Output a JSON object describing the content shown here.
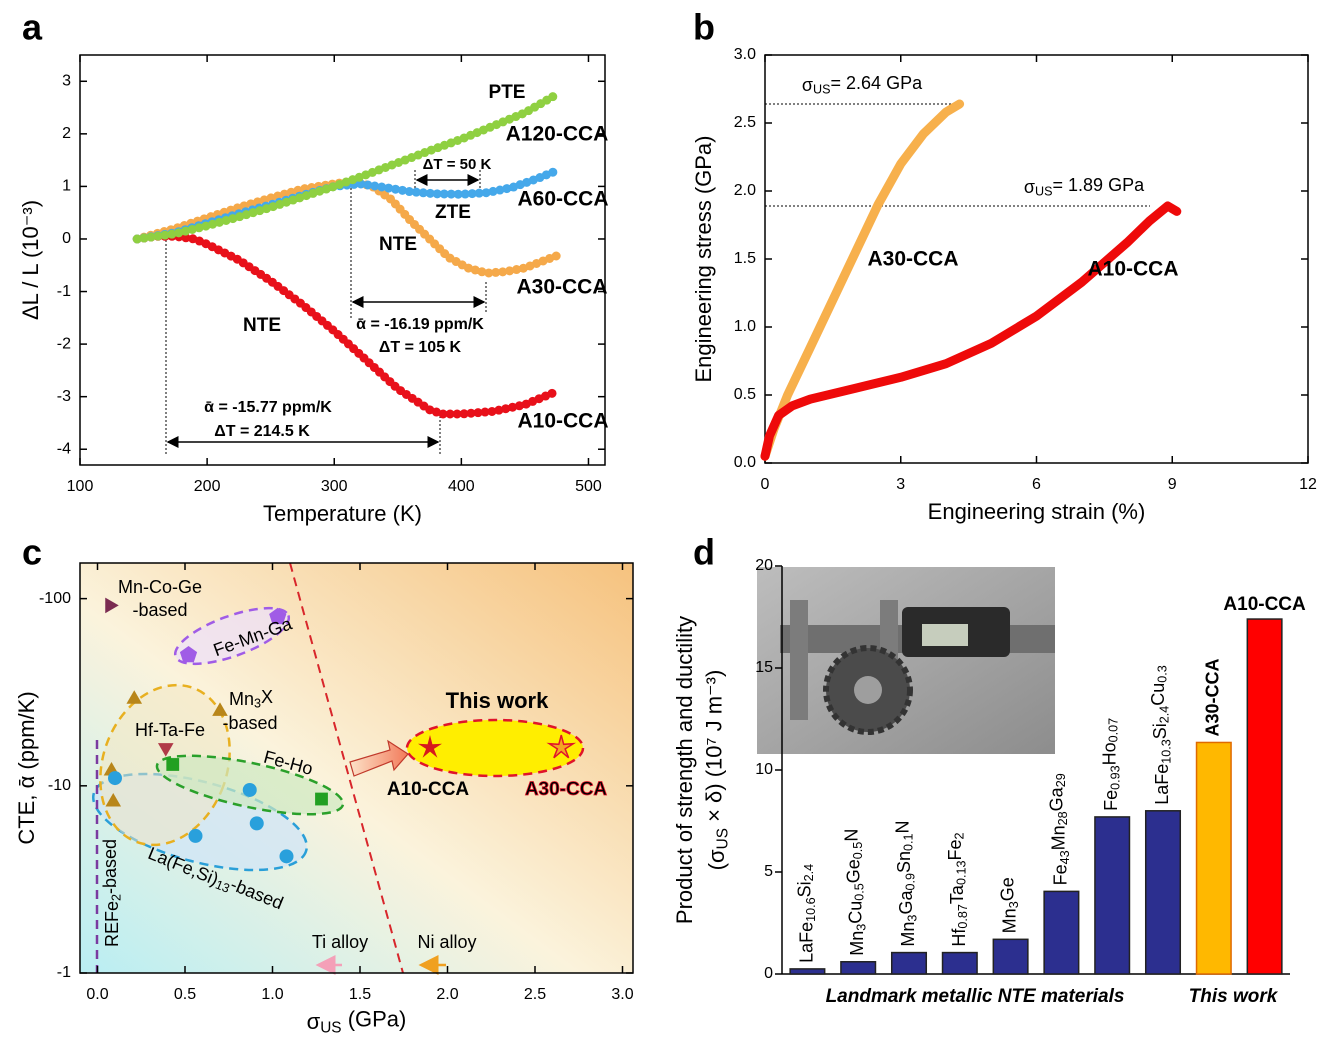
{
  "chart_data": [
    {
      "panel": "a",
      "type": "line",
      "x_label": "Temperature (K)",
      "y_label": "ΔL / L (10⁻³)",
      "xlim": [
        100,
        513
      ],
      "ylim": [
        -4.3,
        3.5
      ],
      "xticks": [
        100,
        200,
        300,
        400,
        500
      ],
      "yticks": [
        -4,
        -3,
        -2,
        -1,
        0,
        1,
        2,
        3
      ],
      "series": [
        {
          "name": "A10-CCA",
          "color": "#e8101a",
          "x": [
            145,
            160,
            175,
            190,
            200,
            225,
            250,
            275,
            300,
            325,
            350,
            375,
            385,
            400,
            425,
            450,
            475
          ],
          "values": [
            0,
            0.05,
            0.05,
            0,
            -0.1,
            -0.4,
            -0.8,
            -1.25,
            -1.75,
            -2.3,
            -2.85,
            -3.25,
            -3.33,
            -3.33,
            -3.28,
            -3.15,
            -2.9
          ]
        },
        {
          "name": "A30-CCA",
          "color": "#f5a94a",
          "x": [
            145,
            175,
            200,
            225,
            250,
            275,
            300,
            315,
            330,
            345,
            360,
            375,
            390,
            405,
            420,
            435,
            450,
            475
          ],
          "values": [
            0,
            0.2,
            0.4,
            0.6,
            0.78,
            0.95,
            1.05,
            1.1,
            1.0,
            0.75,
            0.35,
            0,
            -0.35,
            -0.55,
            -0.65,
            -0.62,
            -0.55,
            -0.32
          ]
        },
        {
          "name": "A60-CCA",
          "color": "#45a8ea",
          "x": [
            145,
            175,
            200,
            225,
            250,
            275,
            300,
            320,
            340,
            360,
            380,
            400,
            420,
            440,
            460,
            475
          ],
          "values": [
            0,
            0.12,
            0.3,
            0.48,
            0.65,
            0.83,
            1.0,
            1.05,
            0.98,
            0.9,
            0.86,
            0.85,
            0.88,
            0.98,
            1.15,
            1.3
          ]
        },
        {
          "name": "A120-CCA",
          "color": "#8fd041",
          "x": [
            145,
            175,
            200,
            225,
            250,
            275,
            300,
            325,
            350,
            375,
            400,
            425,
            450,
            475
          ],
          "values": [
            0,
            0.1,
            0.25,
            0.42,
            0.6,
            0.8,
            1.0,
            1.22,
            1.45,
            1.68,
            1.9,
            2.15,
            2.4,
            2.75
          ]
        }
      ],
      "annotations": [
        {
          "text": "PTE",
          "color": "#8fd041"
        },
        {
          "text": "ΔT = 50 K",
          "color": "#000000"
        },
        {
          "text": "ZTE",
          "color": "#45a8ea"
        },
        {
          "text": "NTE",
          "color": "#f5a94a"
        },
        {
          "text": "NTE",
          "color": "#e8101a"
        },
        {
          "text": "ᾱ = -16.19 ppm/K",
          "color": "#000000"
        },
        {
          "text": "ΔT = 105 K",
          "color": "#000000"
        },
        {
          "text": "ᾱ = -15.77 ppm/K",
          "color": "#000000"
        },
        {
          "text": "ΔT = 214.5 K",
          "color": "#000000"
        }
      ]
    },
    {
      "panel": "b",
      "type": "line",
      "x_label": "Engineering strain (%)",
      "y_label": "Engineering stress (GPa)",
      "xlim": [
        0,
        12
      ],
      "ylim": [
        0,
        3
      ],
      "xticks": [
        0,
        3,
        6,
        9,
        12
      ],
      "yticks": [
        {
          "value": 0,
          "label": "0.0"
        },
        0.5,
        {
          "value": 1,
          "label": "1.0"
        },
        1.5,
        {
          "value": 2,
          "label": "2.0"
        },
        2.5,
        {
          "value": 3,
          "label": "3.0"
        }
      ],
      "series": [
        {
          "name": "A30-CCA",
          "color": "#f7b04c",
          "x": [
            0,
            0.2,
            0.5,
            1,
            1.5,
            2,
            2.5,
            3,
            3.5,
            4,
            4.3
          ],
          "values": [
            0.05,
            0.25,
            0.5,
            0.85,
            1.2,
            1.55,
            1.9,
            2.2,
            2.42,
            2.58,
            2.64
          ]
        },
        {
          "name": "A10-CCA",
          "color": "#ee0a0a",
          "x": [
            0,
            0.1,
            0.3,
            0.6,
            1,
            2,
            3,
            4,
            5,
            6,
            7,
            8,
            8.5,
            8.9,
            9.1
          ],
          "values": [
            0.05,
            0.2,
            0.35,
            0.42,
            0.47,
            0.55,
            0.63,
            0.73,
            0.88,
            1.08,
            1.33,
            1.62,
            1.78,
            1.89,
            1.85
          ]
        }
      ],
      "annotations": [
        {
          "text": "σUS= 2.64 GPa",
          "color": "#000000"
        },
        {
          "text": "σUS= 1.89 GPa",
          "color": "#000000"
        }
      ]
    },
    {
      "panel": "c",
      "type": "scatter",
      "x_label": "σUS (GPa)",
      "y_label": "CTE, ᾱ (ppm/K)",
      "xlim": [
        -0.1,
        3.06
      ],
      "ylim": [
        -1,
        -155
      ],
      "log_y": true,
      "xticks": [
        {
          "value": 0,
          "label": "0.0"
        },
        0.5,
        {
          "value": 1,
          "label": "1.0"
        },
        1.5,
        {
          "value": 2,
          "label": "2.0"
        },
        2.5,
        {
          "value": 3,
          "label": "3.0"
        }
      ],
      "yticks": [
        -100,
        -10,
        -1
      ],
      "series": [
        {
          "name": [
            "Mn-Co-Ge",
            "-based"
          ],
          "color": "#7b2c52",
          "marker": "triangle-right",
          "x": [
            0.07
          ],
          "values": [
            -92
          ]
        },
        {
          "name": [
            "Fe-Mn-Ga"
          ],
          "color": "#a05ce6",
          "marker": "pentagon",
          "x": [
            0.52,
            1.03
          ],
          "values": [
            -50,
            -80
          ]
        },
        {
          "name": [
            "Mn3X",
            "-based"
          ],
          "color": "#b8861a",
          "marker": "triangle",
          "x": [
            0.21,
            0.7,
            0.08,
            0.09
          ],
          "values": [
            -29,
            -25,
            -12,
            -8.2
          ]
        },
        {
          "name": [
            "Hf-Ta-Fe"
          ],
          "color": "#b03a48",
          "marker": "triangle-down",
          "x": [
            0.39
          ],
          "values": [
            -16
          ]
        },
        {
          "name": [
            "Fe-Ho"
          ],
          "color": "#22a022",
          "marker": "square",
          "x": [
            0.43,
            1.28
          ],
          "values": [
            -13,
            -8.5
          ]
        },
        {
          "name": [
            "La(Fe,Si)13-based"
          ],
          "color": "#29a0dc",
          "marker": "circle",
          "x": [
            0.1,
            0.56,
            0.87,
            0.91,
            1.08
          ],
          "values": [
            -11,
            -5.4,
            -9.5,
            -6.3,
            -4.2
          ]
        },
        {
          "name": [
            "A10-CCA"
          ],
          "color": "#d7191c",
          "marker": "star",
          "x": [
            1.9
          ],
          "values": [
            -16
          ]
        },
        {
          "name": [
            "A30-CCA"
          ],
          "color": "#f5a623",
          "marker": "star",
          "x": [
            2.65
          ],
          "values": [
            -16
          ]
        }
      ],
      "annotations": [
        {
          "text": "This work",
          "color": "#e0142a"
        },
        {
          "text": "REFe2-based",
          "color": "#7a3aa0"
        },
        {
          "text": "Ti alloy",
          "color": "#777777"
        },
        {
          "text": "Ni alloy",
          "color": "#777777"
        }
      ]
    },
    {
      "panel": "d",
      "type": "bar",
      "y_label": [
        "Product of strength and ductility",
        "(σUS × δ) (10⁷ J m⁻³)"
      ],
      "ylim": [
        0,
        20
      ],
      "yticks": [
        0,
        5,
        10,
        15,
        20
      ],
      "categories": [
        "LaFe10.6Si2.4",
        "Mn3Cu0.5Ge0.5N",
        "Mn3Ga0.9Sn0.1N",
        "Hf0.87Ta0.13Fe2",
        "Mn3Ge",
        "Fe43Mn28Ga29",
        "Fe0.93Ho0.07",
        "LaFe10.3Si2.4Cu0.3",
        "A30-CCA",
        "A10-CCA"
      ],
      "values": [
        0.25,
        0.6,
        1.05,
        1.05,
        1.7,
        4.05,
        7.7,
        8.0,
        11.35,
        17.4
      ],
      "colors": [
        "#2c2f8f",
        "#2c2f8f",
        "#2c2f8f",
        "#2c2f8f",
        "#2c2f8f",
        "#2c2f8f",
        "#2c2f8f",
        "#2c2f8f",
        "#ffb800",
        "#ff0000"
      ],
      "groups": [
        "Landmark metallic NTE materials",
        "This work"
      ]
    }
  ]
}
